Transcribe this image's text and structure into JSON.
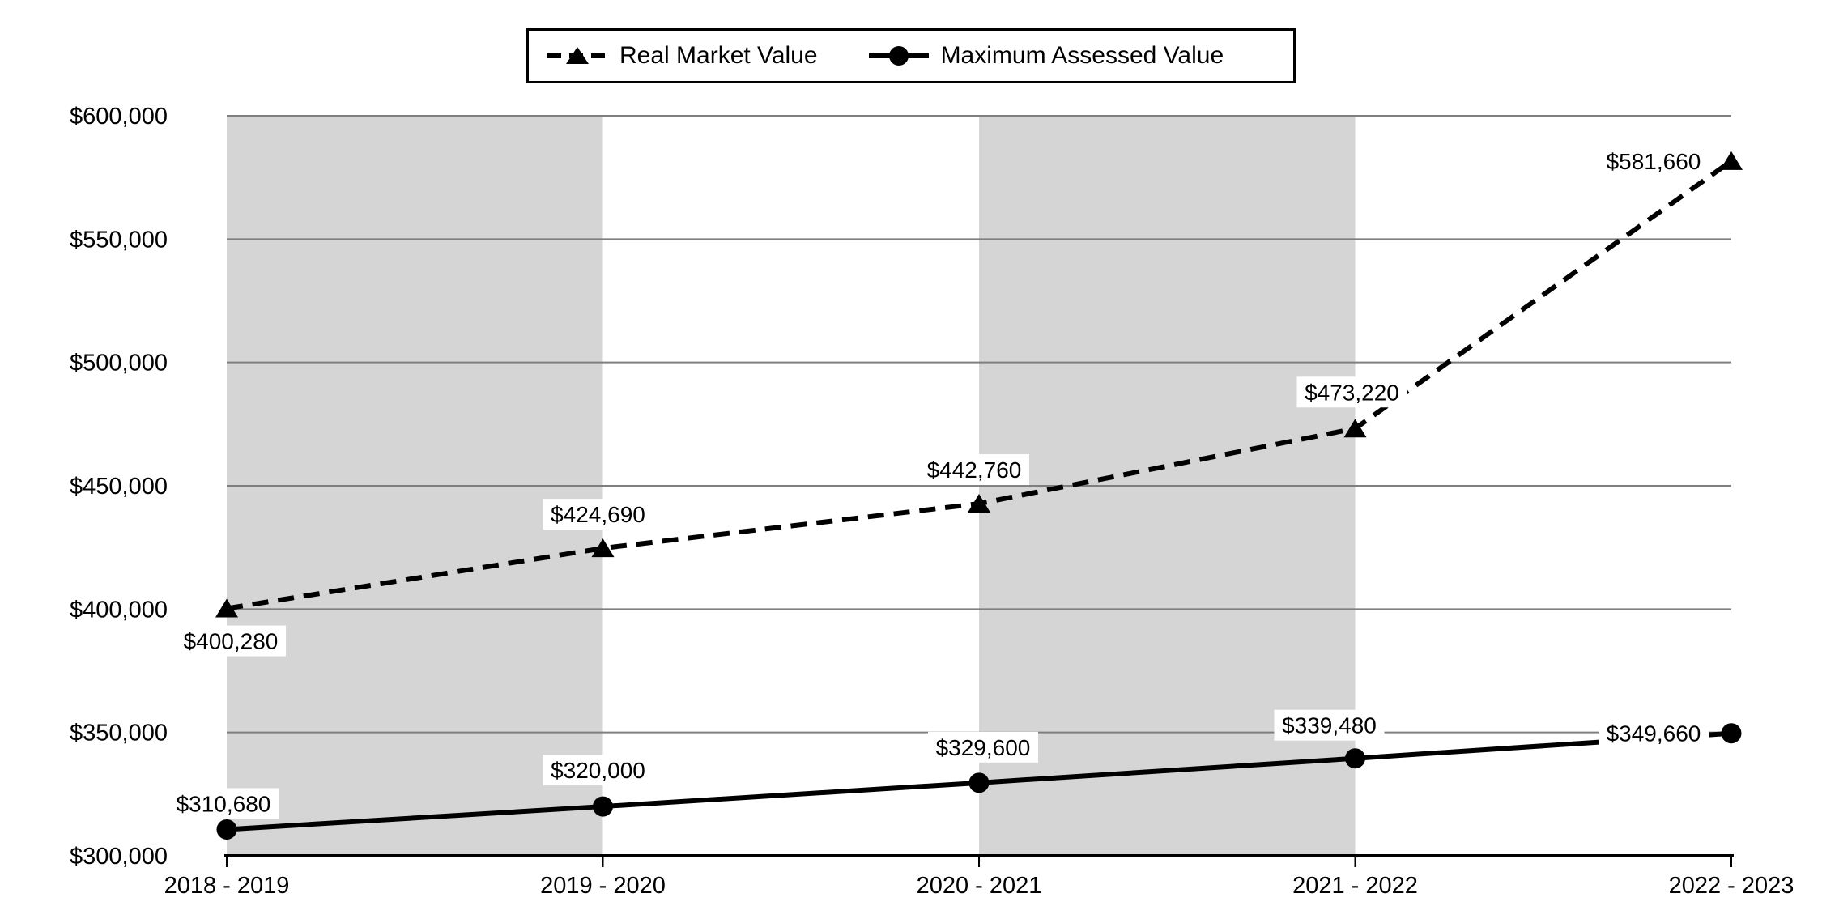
{
  "chart_data": {
    "type": "line",
    "title": "",
    "xlabel": "",
    "ylabel": "",
    "categories": [
      "2018 - 2019",
      "2019 - 2020",
      "2020 - 2021",
      "2021 - 2022",
      "2022 - 2023"
    ],
    "series": [
      {
        "name": "Real Market Value",
        "line_style": "dashed",
        "marker": "triangle",
        "color": "#000000",
        "values": [
          400280,
          424690,
          442760,
          473220,
          581660
        ],
        "labels": [
          "$400,280",
          "$424,690",
          "$442,760",
          "$473,220",
          "$581,660"
        ],
        "label_offsets": [
          [
            5,
            40
          ],
          [
            -6,
            -42
          ],
          [
            -6,
            -42
          ],
          [
            -4,
            -45
          ],
          [
            -96,
            0
          ]
        ]
      },
      {
        "name": "Maximum Assessed Value",
        "line_style": "solid",
        "marker": "circle",
        "color": "#000000",
        "values": [
          310680,
          320000,
          329600,
          339480,
          349660
        ],
        "labels": [
          "$310,680",
          "$320,000",
          "$329,600",
          "$339,480",
          "$349,660"
        ],
        "label_offsets": [
          [
            -4,
            -32
          ],
          [
            -6,
            -45
          ],
          [
            5,
            -44
          ],
          [
            -32,
            -41
          ],
          [
            -96,
            0
          ]
        ]
      }
    ],
    "ylim": [
      300000,
      600000
    ],
    "y_ticks": [
      {
        "value": 600000,
        "label": "$600,000"
      },
      {
        "value": 550000,
        "label": "$550,000"
      },
      {
        "value": 500000,
        "label": "$500,000"
      },
      {
        "value": 450000,
        "label": "$450,000"
      },
      {
        "value": 400000,
        "label": "$400,000"
      },
      {
        "value": 350000,
        "label": "$350,000"
      },
      {
        "value": 300000,
        "label": "$300,000"
      }
    ],
    "grid": true,
    "legend_position": "top",
    "band_between_categories": [
      [
        0,
        1
      ],
      [
        2,
        3
      ]
    ],
    "band_color": "#d5d5d5",
    "gridline_color": "#7f7f7f",
    "axis_color": "#000000",
    "label_background": "#ffffff",
    "text_color": "#000000"
  }
}
